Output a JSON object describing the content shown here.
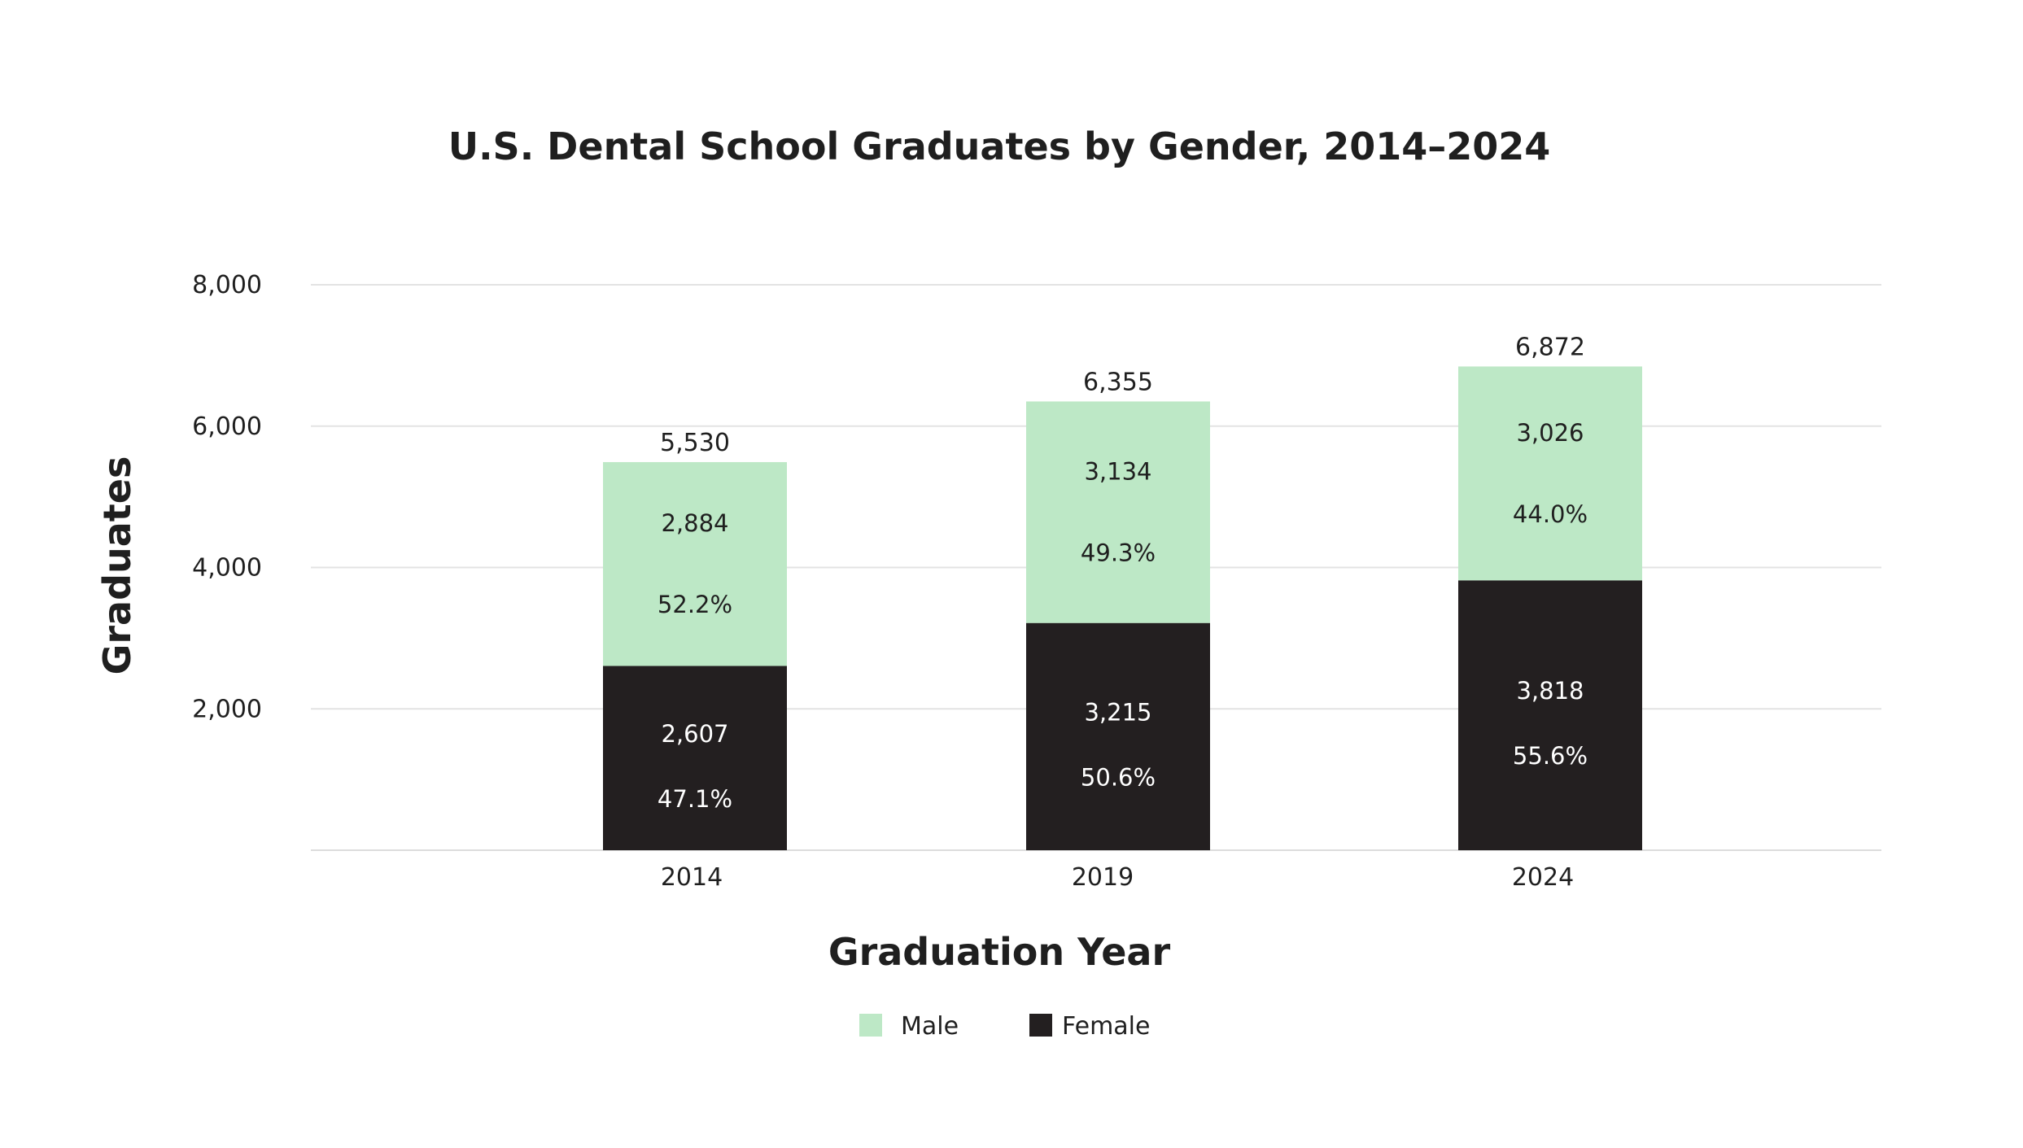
{
  "chart_data": {
    "type": "bar",
    "stacked": true,
    "title": "U.S. Dental School Graduates by Gender, 2014–2024",
    "xlabel": "Graduation Year",
    "ylabel": "Graduates",
    "categories": [
      "2014",
      "2019",
      "2024"
    ],
    "ylim": [
      0,
      8000
    ],
    "yticks": [
      2000,
      4000,
      6000,
      8000
    ],
    "ytick_labels": [
      "2,000",
      "4,000",
      "6,000",
      "8,000"
    ],
    "grid": true,
    "legend_position": "bottom",
    "totals": [
      5530,
      6355,
      6872
    ],
    "total_labels": [
      "5,530",
      "6,355",
      "6,872"
    ],
    "series": [
      {
        "name": "Female",
        "color": "#231f20",
        "values": [
          2607,
          3215,
          3818
        ],
        "value_labels": [
          "2,607",
          "3,215",
          "3,818"
        ],
        "percent_labels": [
          "47.1%",
          "50.6%",
          "55.6%"
        ]
      },
      {
        "name": "Male",
        "color": "#bde8c6",
        "values": [
          2884,
          3134,
          3026
        ],
        "value_labels": [
          "2,884",
          "3,134",
          "3,026"
        ],
        "percent_labels": [
          "52.2%",
          "49.3%",
          "44.0%"
        ]
      }
    ],
    "legend_order": [
      "Male",
      "Female"
    ]
  }
}
